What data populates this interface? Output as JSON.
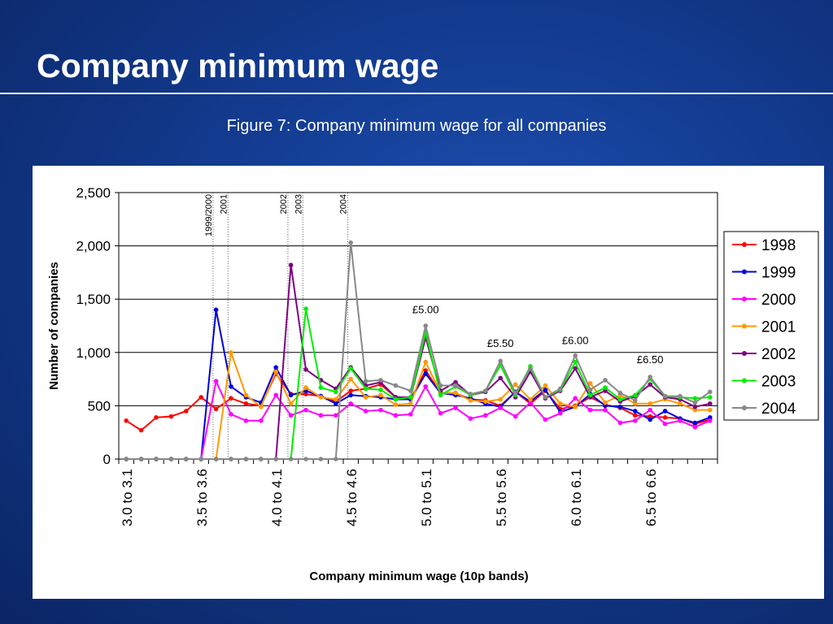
{
  "slide": {
    "title": "Company minimum wage",
    "caption": "Figure 7: Company minimum wage for all companies"
  },
  "colors": {
    "background": "#123a8e",
    "series": {
      "1998": "#ff0000",
      "1999": "#0000dd",
      "2000": "#ff00ff",
      "2001": "#ff9900",
      "2002": "#800080",
      "2003": "#00ee00",
      "2004": "#888888"
    }
  },
  "chart_data": {
    "type": "line",
    "title": "",
    "xlabel": "Company minimum wage (10p bands)",
    "ylabel": "Number of companies",
    "ylim": [
      0,
      2500
    ],
    "yticks": [
      "0",
      "500",
      "1,000",
      "1,500",
      "2,000",
      "2,500"
    ],
    "grid": "horizontal",
    "legend": "right",
    "x_tick_labels": [
      "3.0 to 3.1",
      "3.5 to 3.6",
      "4.0 to 4.1",
      "4.5 to 4.6",
      "5.0 to 5.1",
      "5.5 to 5.6",
      "6.0 to 6.1",
      "6.5 to 6.6"
    ],
    "x_tick_label_positions": [
      0,
      5,
      10,
      15,
      20,
      25,
      30,
      35
    ],
    "num_bands": 40,
    "annotations": [
      {
        "text": "£5.00",
        "band": 20,
        "y": 1370
      },
      {
        "text": "£5.50",
        "band": 25,
        "y": 1050
      },
      {
        "text": "£6.00",
        "band": 30,
        "y": 1080
      },
      {
        "text": "£6.50",
        "band": 35,
        "y": 900
      }
    ],
    "minimum_wage_markers": [
      {
        "label": "1999/2000",
        "band": 5.8
      },
      {
        "label": "2001",
        "band": 6.8
      },
      {
        "label": "2002",
        "band": 10.8
      },
      {
        "label": "2003",
        "band": 11.8
      },
      {
        "label": "2004",
        "band": 14.8
      }
    ],
    "series": [
      {
        "name": "1998",
        "values": [
          360,
          270,
          390,
          400,
          450,
          580,
          470,
          570,
          520,
          500,
          800,
          610,
          610,
          590,
          540,
          640,
          660,
          700,
          580,
          560,
          830,
          620,
          620,
          560,
          550,
          500,
          630,
          520,
          640,
          470,
          500,
          580,
          510,
          480,
          410,
          400,
          390,
          380,
          330,
          370
        ]
      },
      {
        "name": "1999",
        "values": [
          0,
          0,
          0,
          0,
          0,
          0,
          1400,
          680,
          580,
          530,
          860,
          600,
          640,
          590,
          520,
          600,
          590,
          580,
          560,
          560,
          800,
          620,
          600,
          570,
          520,
          490,
          630,
          540,
          650,
          440,
          490,
          610,
          500,
          490,
          450,
          370,
          450,
          380,
          340,
          390
        ]
      },
      {
        "name": "2000",
        "values": [
          0,
          0,
          0,
          0,
          0,
          0,
          730,
          420,
          360,
          360,
          600,
          410,
          460,
          410,
          410,
          520,
          450,
          460,
          410,
          420,
          680,
          430,
          480,
          380,
          410,
          480,
          400,
          530,
          370,
          430,
          570,
          460,
          460,
          340,
          360,
          460,
          330,
          360,
          300,
          360
        ]
      },
      {
        "name": "2001",
        "values": [
          0,
          0,
          0,
          0,
          0,
          0,
          0,
          1000,
          600,
          490,
          820,
          520,
          670,
          580,
          560,
          750,
          580,
          600,
          510,
          520,
          910,
          620,
          620,
          550,
          540,
          560,
          700,
          560,
          690,
          520,
          490,
          710,
          530,
          600,
          520,
          520,
          560,
          520,
          460,
          460
        ]
      },
      {
        "name": "2002",
        "values": [
          0,
          0,
          0,
          0,
          0,
          0,
          0,
          0,
          0,
          0,
          0,
          1820,
          840,
          740,
          660,
          860,
          690,
          720,
          580,
          580,
          1140,
          640,
          720,
          600,
          630,
          760,
          580,
          820,
          570,
          640,
          850,
          580,
          640,
          540,
          590,
          700,
          580,
          560,
          490,
          520
        ]
      },
      {
        "name": "2003",
        "values": [
          0,
          0,
          0,
          0,
          0,
          0,
          0,
          0,
          0,
          0,
          0,
          0,
          1410,
          670,
          630,
          850,
          660,
          650,
          560,
          580,
          1190,
          600,
          680,
          600,
          640,
          880,
          600,
          870,
          580,
          650,
          910,
          600,
          670,
          560,
          600,
          750,
          590,
          580,
          570,
          580
        ]
      },
      {
        "name": "2004",
        "values": [
          0,
          0,
          0,
          0,
          0,
          0,
          0,
          0,
          0,
          0,
          0,
          0,
          0,
          0,
          0,
          2030,
          730,
          740,
          690,
          640,
          1250,
          690,
          690,
          610,
          640,
          920,
          620,
          850,
          580,
          660,
          970,
          650,
          740,
          620,
          550,
          770,
          590,
          590,
          530,
          630
        ]
      }
    ]
  }
}
